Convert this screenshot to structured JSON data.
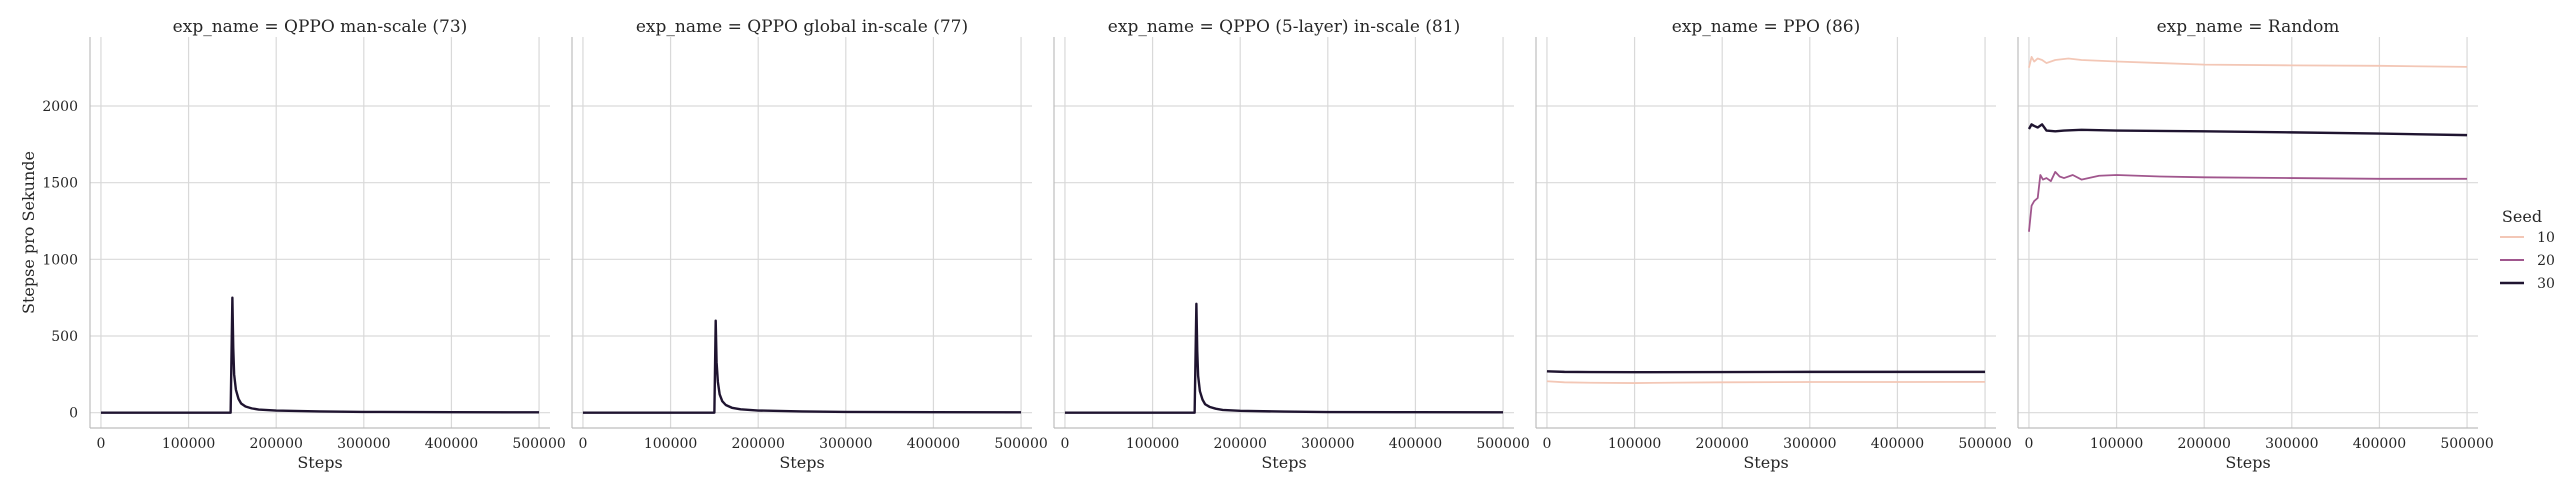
{
  "legend": {
    "title": "Seed",
    "entries": [
      {
        "label": "10",
        "color": "#f3c7b6"
      },
      {
        "label": "20",
        "color": "#a0568d"
      },
      {
        "label": "30",
        "color": "#1f1430"
      }
    ]
  },
  "chart_data": [
    {
      "type": "line",
      "title": "exp_name = QPPO man-scale (73)",
      "xlabel": "Steps",
      "ylabel": "Stepse pro Sekunde",
      "xlim": [
        -12500,
        512500
      ],
      "ylim": [
        -100,
        2450
      ],
      "xticks": [
        0,
        100000,
        200000,
        300000,
        400000,
        500000
      ],
      "yticks": [
        0,
        500,
        1000,
        1500,
        2000
      ],
      "grid": true,
      "series": [
        {
          "name": "30",
          "color": "#1f1430",
          "x": [
            0,
            140000,
            148000,
            150000,
            151000,
            152000,
            154000,
            157000,
            160000,
            165000,
            172000,
            180000,
            200000,
            250000,
            300000,
            400000,
            500000
          ],
          "y": [
            0,
            0,
            0,
            750,
            420,
            250,
            150,
            90,
            60,
            40,
            28,
            20,
            14,
            8,
            5,
            3,
            2
          ]
        }
      ]
    },
    {
      "type": "line",
      "title": "exp_name = QPPO global in-scale (77)",
      "xlabel": "Steps",
      "ylabel": "",
      "xlim": [
        -12500,
        512500
      ],
      "ylim": [
        -100,
        2450
      ],
      "xticks": [
        0,
        100000,
        200000,
        300000,
        400000,
        500000
      ],
      "yticks": [
        0,
        500,
        1000,
        1500,
        2000
      ],
      "grid": true,
      "series": [
        {
          "name": "30",
          "color": "#1f1430",
          "x": [
            0,
            145000,
            150000,
            151500,
            152500,
            154000,
            156000,
            159000,
            163000,
            170000,
            180000,
            200000,
            250000,
            300000,
            400000,
            500000
          ],
          "y": [
            0,
            0,
            0,
            600,
            330,
            200,
            120,
            75,
            50,
            32,
            22,
            14,
            8,
            5,
            3,
            2
          ]
        }
      ]
    },
    {
      "type": "line",
      "title": "exp_name = QPPO (5-layer) in-scale (81)",
      "xlabel": "Steps",
      "ylabel": "",
      "xlim": [
        -12500,
        512500
      ],
      "ylim": [
        -100,
        2450
      ],
      "xticks": [
        0,
        100000,
        200000,
        300000,
        400000,
        500000
      ],
      "yticks": [
        0,
        500,
        1000,
        1500,
        2000
      ],
      "grid": true,
      "series": [
        {
          "name": "30",
          "color": "#1f1430",
          "x": [
            0,
            140000,
            148000,
            150000,
            151000,
            152000,
            154000,
            157000,
            160000,
            165000,
            172000,
            180000,
            200000,
            250000,
            300000,
            400000,
            500000
          ],
          "y": [
            0,
            0,
            0,
            710,
            400,
            240,
            140,
            85,
            55,
            38,
            26,
            18,
            12,
            7,
            4,
            3,
            2
          ]
        }
      ]
    },
    {
      "type": "line",
      "title": "exp_name = PPO (86)",
      "xlabel": "Steps",
      "ylabel": "",
      "xlim": [
        -12500,
        512500
      ],
      "ylim": [
        -100,
        2450
      ],
      "xticks": [
        0,
        100000,
        200000,
        300000,
        400000,
        500000
      ],
      "yticks": [
        0,
        500,
        1000,
        1500,
        2000
      ],
      "grid": true,
      "series": [
        {
          "name": "10",
          "color": "#f3c7b6",
          "x": [
            0,
            20000,
            50000,
            100000,
            150000,
            200000,
            300000,
            400000,
            500000
          ],
          "y": [
            205,
            198,
            195,
            193,
            196,
            198,
            200,
            200,
            201
          ]
        },
        {
          "name": "30",
          "color": "#1f1430",
          "x": [
            0,
            20000,
            50000,
            100000,
            200000,
            300000,
            400000,
            500000
          ],
          "y": [
            270,
            266,
            265,
            264,
            265,
            266,
            266,
            266
          ]
        }
      ]
    },
    {
      "type": "line",
      "title": "exp_name = Random",
      "xlabel": "Steps",
      "ylabel": "",
      "xlim": [
        -12500,
        512500
      ],
      "ylim": [
        -100,
        2450
      ],
      "xticks": [
        0,
        100000,
        200000,
        300000,
        400000,
        500000
      ],
      "yticks": [
        0,
        500,
        1000,
        1500,
        2000
      ],
      "grid": true,
      "series": [
        {
          "name": "10",
          "color": "#f3c7b6",
          "x": [
            0,
            3000,
            6000,
            10000,
            15000,
            20000,
            30000,
            45000,
            60000,
            80000,
            100000,
            150000,
            200000,
            300000,
            400000,
            500000
          ],
          "y": [
            2250,
            2320,
            2290,
            2310,
            2300,
            2280,
            2300,
            2310,
            2300,
            2295,
            2290,
            2280,
            2270,
            2265,
            2262,
            2255
          ]
        },
        {
          "name": "20",
          "color": "#a0568d",
          "x": [
            0,
            3000,
            6000,
            10000,
            13000,
            16000,
            20000,
            25000,
            30000,
            35000,
            40000,
            50000,
            60000,
            80000,
            100000,
            150000,
            200000,
            300000,
            400000,
            500000
          ],
          "y": [
            1180,
            1350,
            1380,
            1400,
            1550,
            1520,
            1530,
            1510,
            1570,
            1540,
            1530,
            1550,
            1520,
            1545,
            1550,
            1540,
            1535,
            1530,
            1525,
            1525
          ]
        },
        {
          "name": "30",
          "color": "#1f1430",
          "x": [
            0,
            3000,
            6000,
            10000,
            15000,
            20000,
            30000,
            40000,
            60000,
            100000,
            200000,
            300000,
            400000,
            500000
          ],
          "y": [
            1850,
            1880,
            1870,
            1860,
            1880,
            1840,
            1835,
            1840,
            1845,
            1840,
            1835,
            1828,
            1820,
            1810
          ]
        }
      ]
    }
  ]
}
